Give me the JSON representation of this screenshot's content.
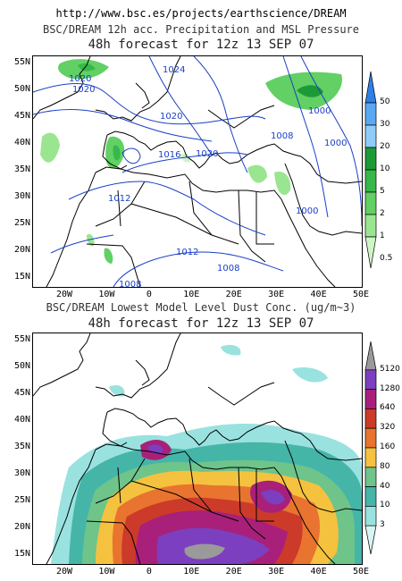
{
  "url": "http://www.bsc.es/projects/earthscience/DREAM",
  "map_extent": {
    "lon": [
      -25,
      50
    ],
    "lat": [
      14,
      58
    ]
  },
  "top_panel": {
    "title": "BSC/DREAM 12h acc. Precipitation and MSL Pressure",
    "subtitle": "48h forecast for 12z 13 SEP 07",
    "colorbar_labels": [
      "50",
      "30",
      "20",
      "10",
      "5",
      "2",
      "1",
      "0.5"
    ],
    "colorbar_colors": [
      "#2f7fe6",
      "#5aa8f2",
      "#8fcdf8",
      "#1d9a38",
      "#36b84a",
      "#62d064",
      "#9ae690",
      "#cff5c6"
    ],
    "isobar_labels": [
      "1020",
      "1024",
      "1020",
      "1020",
      "1016",
      "1020",
      "1012",
      "1012",
      "1008",
      "1008",
      "1000",
      "1000",
      "1000",
      "1008"
    ]
  },
  "bottom_panel": {
    "title": "BSC/DREAM Lowest Model Level Dust Conc. (ug/m~3)",
    "subtitle": "48h forecast for 12z 13 SEP 07",
    "colorbar_labels": [
      "5120",
      "1280",
      "640",
      "320",
      "160",
      "80",
      "40",
      "10",
      "3"
    ],
    "colorbar_colors": [
      "#9a9a9a",
      "#7b3fbf",
      "#a8207a",
      "#cc3a2a",
      "#e8742f",
      "#f4c23e",
      "#6fc48a",
      "#45b5a8",
      "#99e2df",
      "#d8f5f3"
    ]
  },
  "lat_labels": [
    "55N",
    "50N",
    "45N",
    "40N",
    "35N",
    "30N",
    "25N",
    "20N",
    "15N"
  ],
  "lon_labels": [
    "20W",
    "10W",
    "0",
    "10E",
    "20E",
    "30E",
    "40E",
    "50E"
  ]
}
